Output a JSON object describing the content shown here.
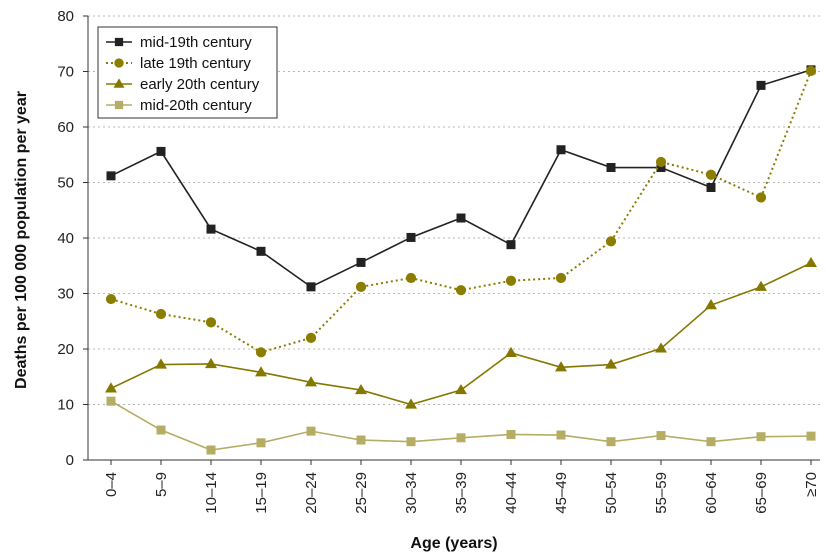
{
  "chart_data": {
    "type": "line",
    "title": "",
    "xlabel": "Age (years)",
    "ylabel": "Deaths per 100 000 population per year",
    "categories": [
      "0–4",
      "5–9",
      "10–14",
      "15–19",
      "20–24",
      "25–29",
      "30–34",
      "35–39",
      "40–44",
      "45–49",
      "50–54",
      "55–59",
      "60–64",
      "65–69",
      "≥70"
    ],
    "ylim": [
      0,
      80
    ],
    "yticks": [
      0,
      10,
      20,
      30,
      40,
      50,
      60,
      70,
      80
    ],
    "grid": true,
    "legend_position": "top-left",
    "series": [
      {
        "name": "mid-19th century",
        "color": "#222222",
        "marker": "square",
        "line_style": "solid",
        "values": [
          51.2,
          55.6,
          41.6,
          37.6,
          31.2,
          35.6,
          40.1,
          43.6,
          38.8,
          55.9,
          52.7,
          52.7,
          49.1,
          67.5,
          70.3
        ]
      },
      {
        "name": "late 19th century",
        "color": "#8a7d00",
        "marker": "circle",
        "line_style": "dotted",
        "values": [
          29.0,
          26.3,
          24.8,
          19.4,
          22.0,
          31.2,
          32.8,
          30.6,
          32.3,
          32.8,
          39.4,
          53.7,
          51.4,
          47.3,
          70.1
        ]
      },
      {
        "name": "early 20th century",
        "color": "#857800",
        "marker": "triangle",
        "line_style": "solid",
        "values": [
          12.9,
          17.2,
          17.3,
          15.8,
          14.0,
          12.6,
          10.0,
          12.6,
          19.3,
          16.7,
          17.2,
          20.1,
          27.9,
          31.2,
          35.5
        ]
      },
      {
        "name": "mid-20th century",
        "color": "#b5ad64",
        "marker": "square",
        "line_style": "solid",
        "values": [
          10.6,
          5.4,
          1.8,
          3.1,
          5.2,
          3.6,
          3.3,
          4.0,
          4.6,
          4.5,
          3.3,
          4.4,
          3.3,
          4.2,
          4.3
        ]
      }
    ]
  }
}
